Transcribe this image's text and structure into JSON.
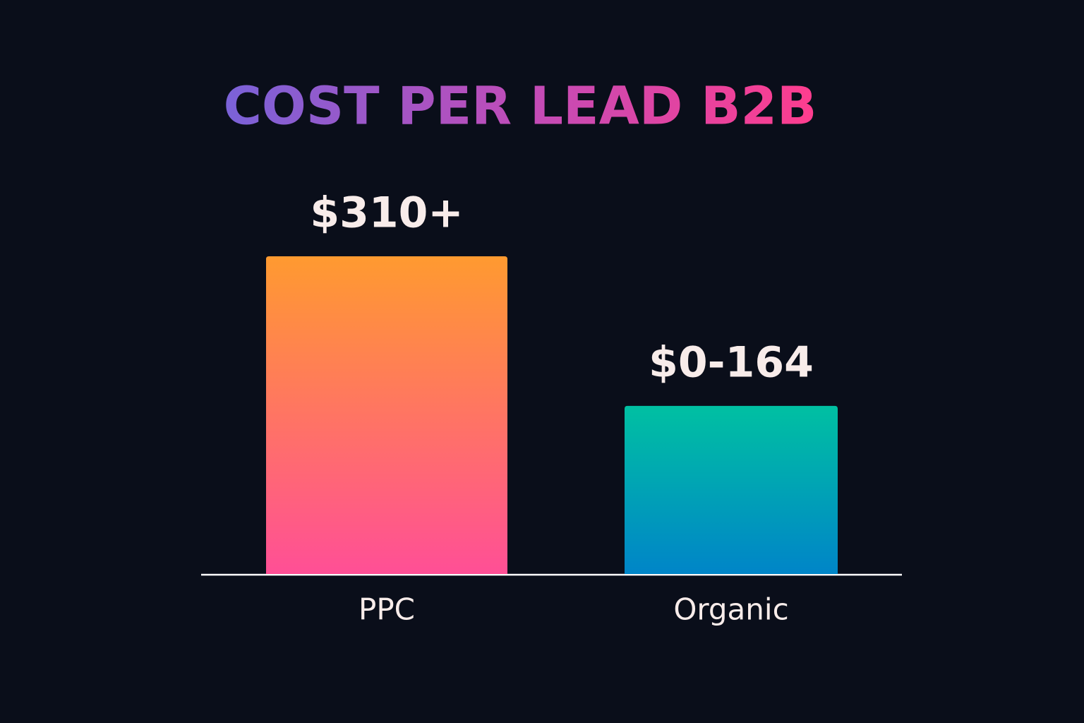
{
  "chart_data": {
    "type": "bar",
    "title": "COST PER LEAD B2B",
    "categories": [
      "PPC",
      "Organic"
    ],
    "values": [
      310,
      164
    ],
    "value_labels": [
      "$310+",
      "$0-164"
    ],
    "colors": [
      [
        "#ff9a30",
        "#ff4f96"
      ],
      [
        "#00c0a2",
        "#0085c8"
      ]
    ]
  }
}
